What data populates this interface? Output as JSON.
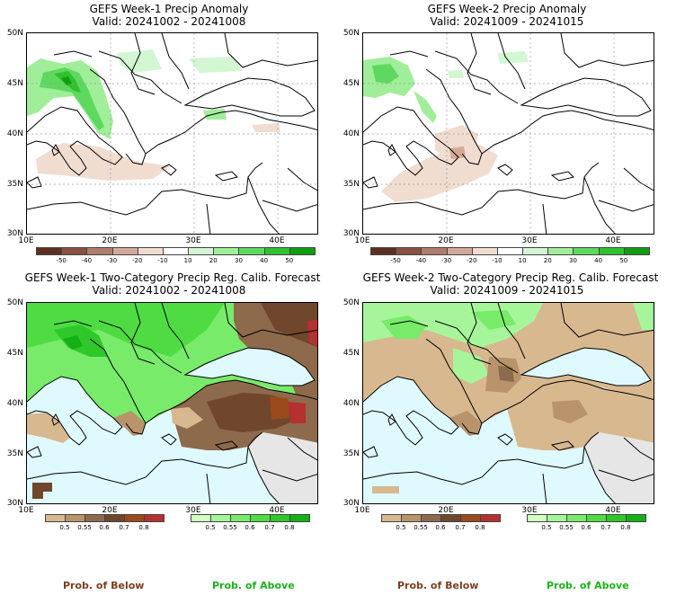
{
  "panels": [
    {
      "title": "GEFS Week-1 Precip Anomaly",
      "valid": "Valid: 20241002 - 20241008"
    },
    {
      "title": "GEFS Week-2 Precip Anomaly",
      "valid": "Valid: 20241009 - 20241015"
    },
    {
      "title": "GEFS Week-1 Two-Category Precip Reg. Calib. Forecast",
      "valid": "Valid: 20241002 - 20241008"
    },
    {
      "title": "GEFS Week-2 Two-Category Precip Reg. Calib. Forecast",
      "valid": "Valid: 20241009 - 20241015"
    }
  ],
  "axes": {
    "lat_labels": [
      "50N",
      "45N",
      "40N",
      "35N",
      "30N"
    ],
    "lon_labels": [
      "10E",
      "20E",
      "30E",
      "40E"
    ]
  },
  "anomaly_colorbar": {
    "ticks": [
      "-50",
      "-40",
      "-30",
      "-20",
      "-10",
      "10",
      "20",
      "30",
      "40",
      "50"
    ],
    "colors": [
      "#5e2f1f",
      "#8a5141",
      "#b07c6c",
      "#d4a898",
      "#f1dcd0",
      "#ffffff",
      "#d2f7d2",
      "#a0ee99",
      "#5fd860",
      "#2ec32e",
      "#109e10"
    ]
  },
  "prob_colorbars": {
    "below": {
      "ticks": [
        "0.5",
        "0.55",
        "0.6",
        "0.7",
        "0.8"
      ],
      "colors": [
        "#d8b88f",
        "#b8936b",
        "#8e6a4c",
        "#70462c",
        "#9a4a1c",
        "#b53030"
      ]
    },
    "above": {
      "ticks": [
        "0.5",
        "0.55",
        "0.6",
        "0.7",
        "0.8"
      ],
      "colors": [
        "#d2ffc4",
        "#a6f59a",
        "#78eb6a",
        "#4fdc42",
        "#2ec82a",
        "#14b014"
      ]
    }
  },
  "labels": {
    "prob_below": "Prob. of Below",
    "prob_above": "Prob. of Above"
  },
  "colors": {
    "sea_fill": "#dffaff",
    "grey_fill": "#e6e6e6"
  }
}
